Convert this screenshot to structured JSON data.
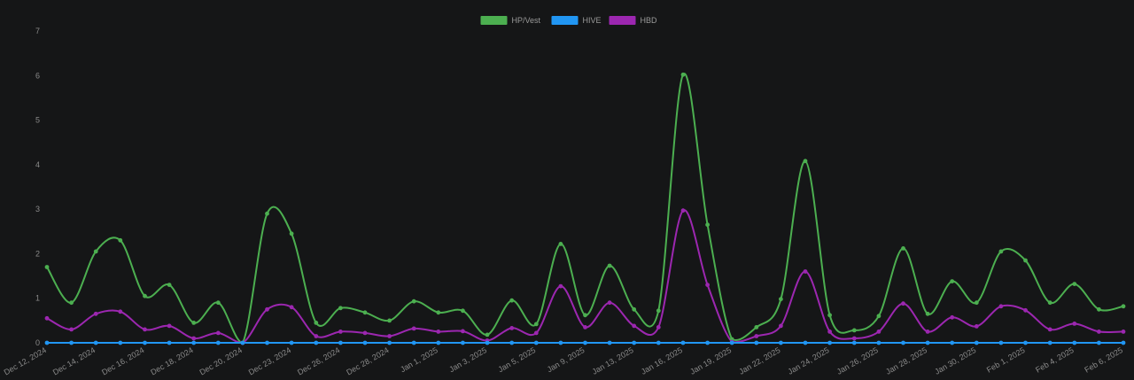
{
  "chart_data": {
    "type": "line",
    "title": "",
    "xlabel": "",
    "ylabel": "",
    "ylim": [
      0,
      7
    ],
    "y_ticks": [
      "0",
      "1",
      "2",
      "3",
      "4",
      "5",
      "6",
      "7"
    ],
    "grid": false,
    "legend_position": "top-center",
    "x": [
      "Dec 12, 2024",
      "",
      "Dec 14, 2024",
      "",
      "Dec 16, 2024",
      "",
      "Dec 18, 2024",
      "",
      "Dec 20, 2024",
      "",
      "Dec 23, 2024",
      "",
      "Dec 26, 2024",
      "",
      "Dec 28, 2024",
      "",
      "Jan 1, 2025",
      "",
      "Jan 3, 2025",
      "",
      "Jan 5, 2025",
      "",
      "Jan 9, 2025",
      "",
      "Jan 13, 2025",
      "",
      "Jan 16, 2025",
      "",
      "Jan 19, 2025",
      "",
      "Jan 22, 2025",
      "",
      "Jan 24, 2025",
      "",
      "Jan 26, 2025",
      "",
      "Jan 28, 2025",
      "",
      "Jan 30, 2025",
      "",
      "Feb 1, 2025",
      "",
      "Feb 4, 2025",
      "",
      "Feb 6, 2025"
    ],
    "series": [
      {
        "name": "HP/Vest",
        "color": "#4caf50",
        "values": [
          1.7,
          0.9,
          2.05,
          2.3,
          1.05,
          1.3,
          0.45,
          0.9,
          0.0,
          2.9,
          2.45,
          0.45,
          0.78,
          0.68,
          0.5,
          0.93,
          0.68,
          0.72,
          0.18,
          0.95,
          0.42,
          2.22,
          0.62,
          1.73,
          0.75,
          0.72,
          6.02,
          2.65,
          0.08,
          0.35,
          0.98,
          4.08,
          0.62,
          0.28,
          0.6,
          2.12,
          0.65,
          1.38,
          0.9,
          2.05,
          1.85,
          0.9,
          1.32,
          0.75,
          0.82
        ]
      },
      {
        "name": "HIVE",
        "color": "#2196f3",
        "values": [
          0,
          0,
          0,
          0,
          0,
          0,
          0,
          0,
          0,
          0,
          0,
          0,
          0,
          0,
          0,
          0,
          0,
          0,
          0,
          0,
          0,
          0,
          0,
          0,
          0,
          0,
          0,
          0,
          0,
          0,
          0,
          0,
          0,
          0,
          0,
          0,
          0,
          0,
          0,
          0,
          0,
          0,
          0,
          0,
          0
        ]
      },
      {
        "name": "HBD",
        "color": "#9c27b0",
        "values": [
          0.55,
          0.3,
          0.65,
          0.7,
          0.3,
          0.38,
          0.1,
          0.22,
          0.0,
          0.75,
          0.8,
          0.15,
          0.25,
          0.22,
          0.15,
          0.32,
          0.25,
          0.26,
          0.05,
          0.33,
          0.22,
          1.27,
          0.35,
          0.9,
          0.38,
          0.35,
          2.97,
          1.3,
          0.02,
          0.15,
          0.38,
          1.6,
          0.25,
          0.1,
          0.25,
          0.88,
          0.25,
          0.57,
          0.37,
          0.82,
          0.73,
          0.3,
          0.43,
          0.25,
          0.25
        ]
      }
    ]
  }
}
